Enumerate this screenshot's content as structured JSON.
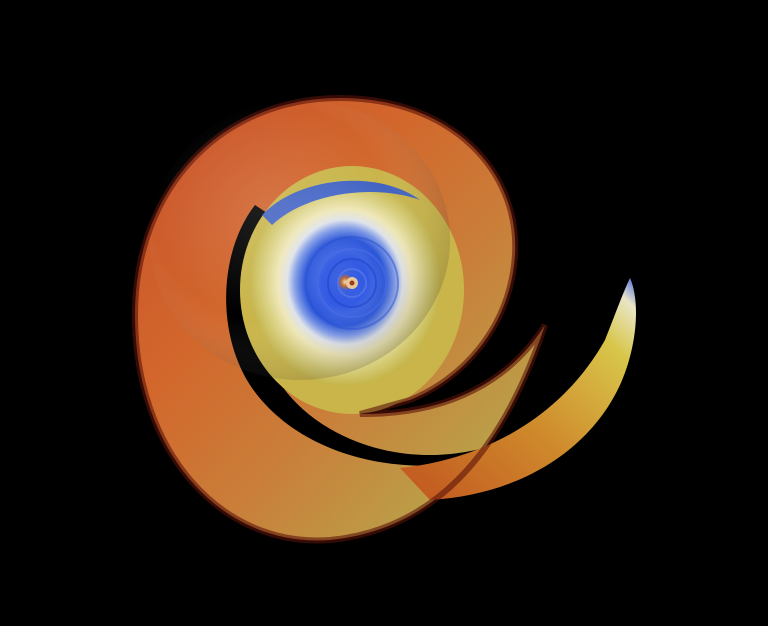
{
  "scene": {
    "background": "#000000",
    "subject": "spiral-shell",
    "palette": {
      "outer_dark": "#7a1a0e",
      "outer": "#d0552a",
      "mid": "#d7902f",
      "gold": "#cfc24a",
      "cream": "#efe7b8",
      "blue": "#2a55d8",
      "blue_light": "#8aa4ea",
      "core": "#b8642a"
    }
  }
}
